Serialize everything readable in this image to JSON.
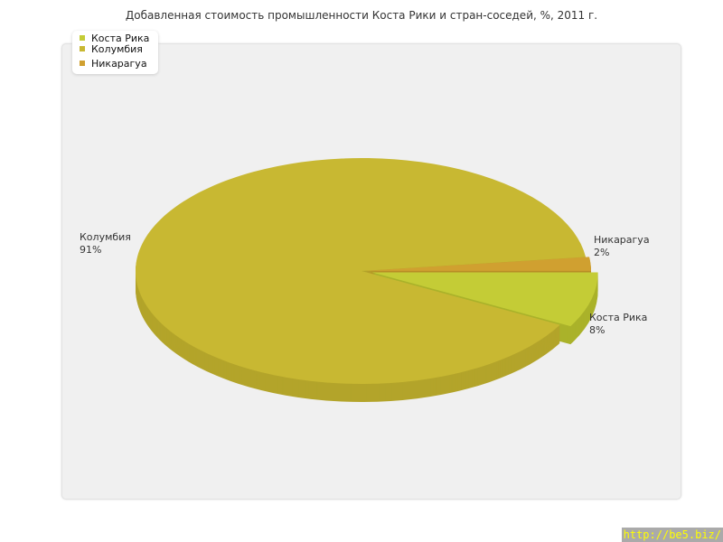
{
  "title": "Добавленная стоимость промышленности Коста Рики и стран-соседей, %, 2011 г.",
  "watermark": "http://be5.biz/",
  "chart_data": {
    "type": "pie",
    "title": "Добавленная стоимость промышленности Коста Рики и стран-соседей, %, 2011 г.",
    "legend_placement": "top-left",
    "slices": [
      {
        "name": "Коста Рика",
        "value": 8,
        "label": "8%",
        "color": "#c4cc36",
        "side": "#aab22a",
        "exploded": true
      },
      {
        "name": "Колумбия",
        "value": 91,
        "label": "91%",
        "color": "#c8b832",
        "side": "#b3a42a",
        "exploded": false
      },
      {
        "name": "Никарагуа",
        "value": 2,
        "label": "2%",
        "color": "#d0a030",
        "side": "#b98c26",
        "exploded": false
      }
    ]
  }
}
